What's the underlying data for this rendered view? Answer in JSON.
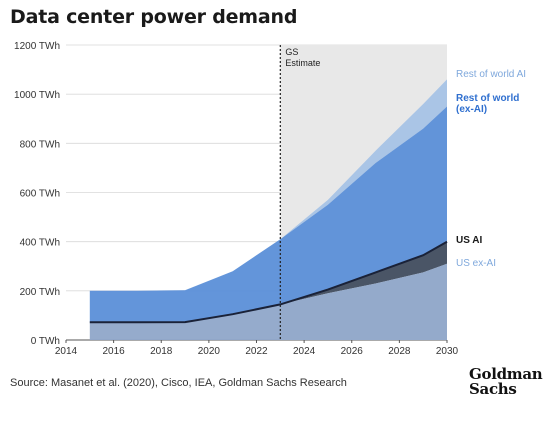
{
  "title": "Data center power demand",
  "source": "Source: Masanet et al. (2020), Cisco, IEA, Goldman Sachs Research",
  "logo": {
    "line1": "Goldman",
    "line2": "Sachs"
  },
  "chart_data": {
    "type": "area",
    "stacked": true,
    "x": [
      2015,
      2017,
      2019,
      2021,
      2023,
      2025,
      2027,
      2029,
      2030
    ],
    "xticks": [
      "2014",
      "2016",
      "2018",
      "2020",
      "2022",
      "2024",
      "2026",
      "2028",
      "2030"
    ],
    "yticks": [
      "0 TWh",
      "200 TWh",
      "400 TWh",
      "600 TWh",
      "800 TWh",
      "1000 TWh",
      "1200 TWh"
    ],
    "ylim": [
      0,
      1200
    ],
    "xlim": [
      2014,
      2030
    ],
    "estimate_start": 2023,
    "estimate_label": [
      "GS",
      "Estimate"
    ],
    "series": [
      {
        "name": "US ex-AI",
        "color": "#8fa6c9",
        "cumulative": [
          72,
          72,
          73,
          105,
          145,
          190,
          230,
          275,
          310
        ]
      },
      {
        "name": "US AI",
        "color": "#4a5566",
        "cumulative": [
          72,
          72,
          73,
          105,
          145,
          205,
          275,
          345,
          400
        ]
      },
      {
        "name": "Rest of world (ex-AI)",
        "color": "#5b8fd8",
        "cumulative": [
          200,
          200,
          202,
          280,
          410,
          550,
          720,
          860,
          950
        ]
      },
      {
        "name": "Rest of world AI",
        "color": "#a7c3e6",
        "cumulative": [
          200,
          200,
          203,
          280,
          410,
          570,
          770,
          960,
          1060
        ]
      }
    ],
    "grid": "horizontal",
    "legend": "right"
  },
  "colors": {
    "estimate_band": "#e8e8e8",
    "us_line": "#1a2238",
    "grid": "#d9d9d9",
    "label_light": "#7fa8dc",
    "label_blue": "#2f6fcf",
    "label_dark": "#1a1a1a"
  }
}
